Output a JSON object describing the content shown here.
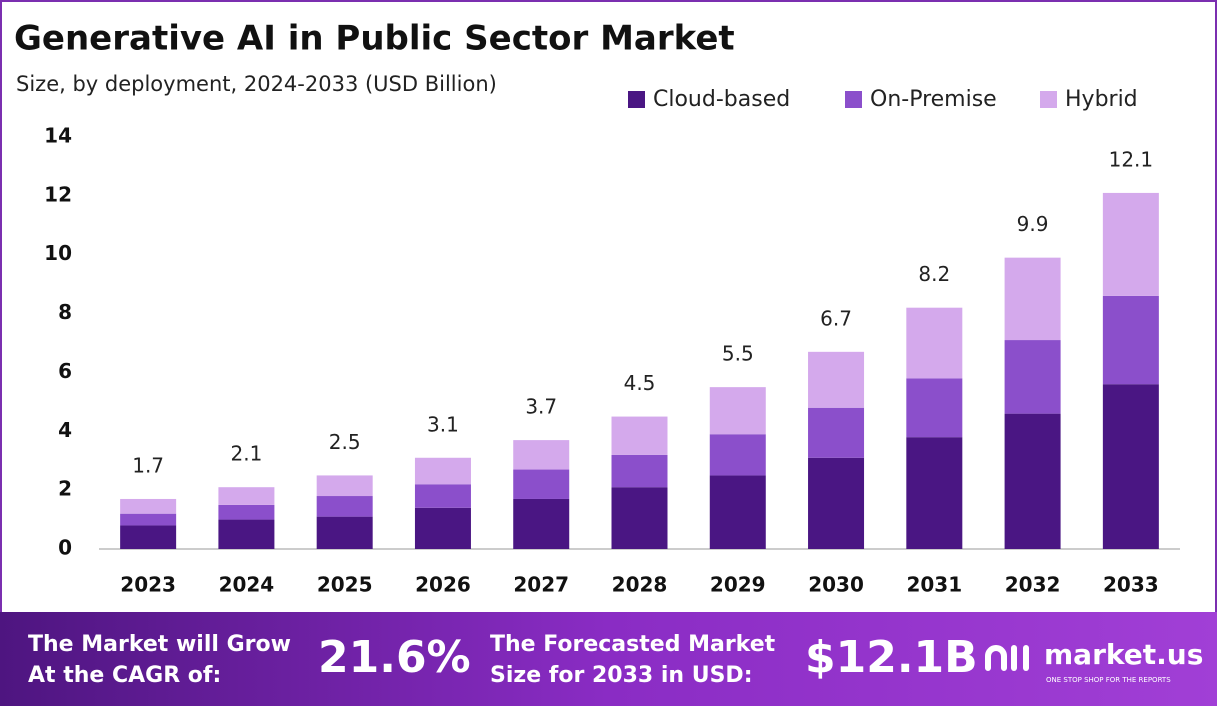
{
  "chart_data": {
    "type": "stacked-bar",
    "title": "Generative AI in Public Sector Market",
    "subtitle": "Size, by deployment, 2024-2033 (USD Billion)",
    "categories": [
      "2023",
      "2024",
      "2025",
      "2026",
      "2027",
      "2028",
      "2029",
      "2030",
      "2031",
      "2032",
      "2033"
    ],
    "series": [
      {
        "name": "Cloud-based",
        "color": "#4a1683",
        "values": [
          0.8,
          1.0,
          1.1,
          1.4,
          1.7,
          2.1,
          2.5,
          3.1,
          3.8,
          4.6,
          5.6
        ]
      },
      {
        "name": "On-Premise",
        "color": "#8b4fcb",
        "values": [
          0.4,
          0.5,
          0.7,
          0.8,
          1.0,
          1.1,
          1.4,
          1.7,
          2.0,
          2.5,
          3.0
        ]
      },
      {
        "name": "Hybrid",
        "color": "#d4a9ec",
        "values": [
          0.5,
          0.6,
          0.7,
          0.9,
          1.0,
          1.3,
          1.6,
          1.9,
          2.4,
          2.8,
          3.5
        ]
      }
    ],
    "totals": [
      1.7,
      2.1,
      2.5,
      3.1,
      3.7,
      4.5,
      5.5,
      6.7,
      8.2,
      9.9,
      12.1
    ],
    "ylim": [
      0,
      14
    ],
    "yticks": [
      0,
      2,
      4,
      6,
      8,
      10,
      12,
      14
    ],
    "grid": false,
    "legend": "top-right"
  },
  "footer": {
    "cagr_text": [
      "The Market will Grow",
      "At the CAGR of:"
    ],
    "cagr": "21.6%",
    "size_text": [
      "The Forecasted Market",
      "Size for 2033 in USD:"
    ],
    "size": "$12.1B",
    "logo": "market.us",
    "tagline": "ONE STOP SHOP FOR THE REPORTS"
  }
}
